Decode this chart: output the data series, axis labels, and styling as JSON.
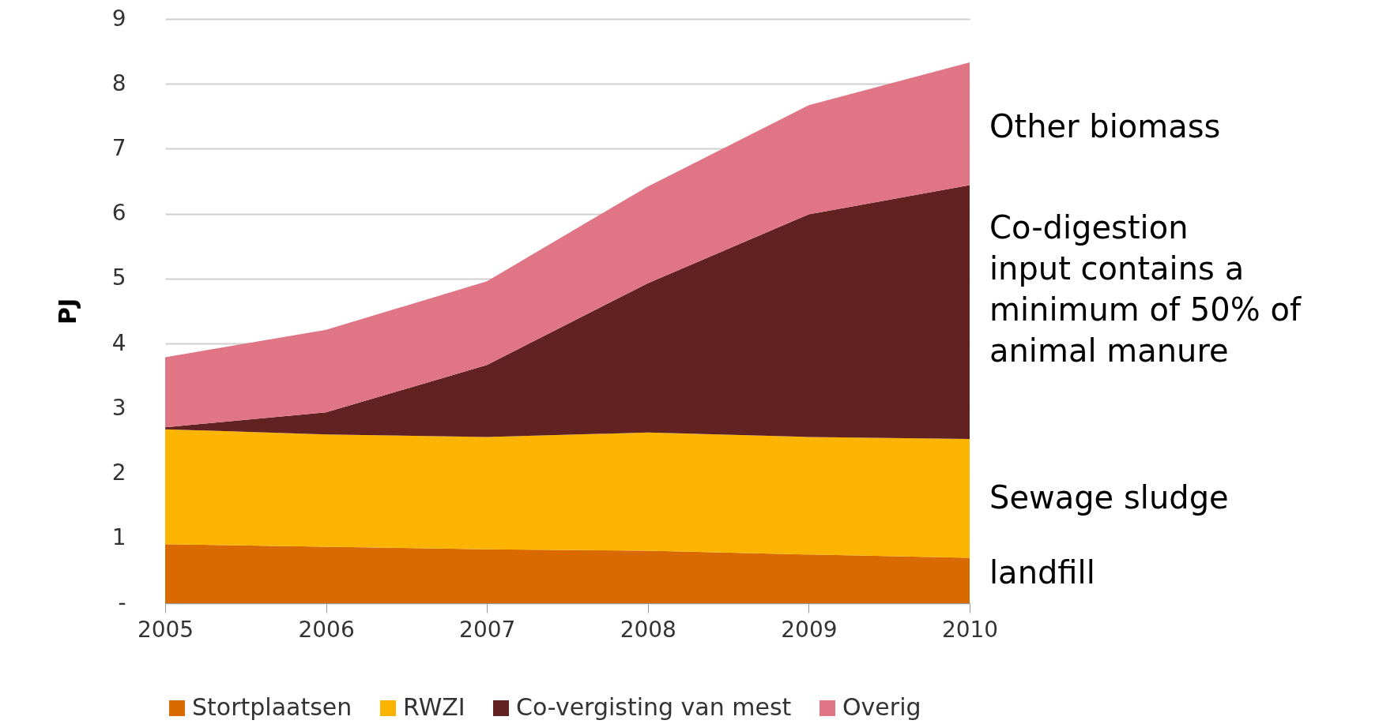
{
  "chart_data": {
    "type": "area",
    "stacked": true,
    "ylabel": "PJ",
    "x": [
      2005,
      2006,
      2007,
      2008,
      2009,
      2010
    ],
    "series": [
      {
        "name": "Stortplaatsen",
        "color": "#d96a00",
        "values": [
          0.91,
          0.87,
          0.83,
          0.81,
          0.75,
          0.7
        ]
      },
      {
        "name": "RWZI",
        "color": "#fbb400",
        "values": [
          1.77,
          1.73,
          1.73,
          1.82,
          1.81,
          1.83
        ]
      },
      {
        "name": "Co-vergisting van mest",
        "color": "#632222",
        "values": [
          0.03,
          0.34,
          1.11,
          2.3,
          3.43,
          3.91
        ]
      },
      {
        "name": "Overig",
        "color": "#e07585",
        "values": [
          1.08,
          1.27,
          1.29,
          1.49,
          1.68,
          1.89
        ]
      }
    ],
    "xlim": [
      2005,
      2010
    ],
    "xticks": [
      2005,
      2006,
      2007,
      2008,
      2009,
      2010
    ],
    "ylim": [
      0,
      9
    ],
    "yticks": [
      {
        "value": 0,
        "label": "-"
      },
      1,
      2,
      3,
      4,
      5,
      6,
      7,
      8,
      9
    ],
    "grid": "y",
    "legend": "bottom",
    "annotations": [
      "Other biomass",
      "Co-digestion\ninput contains a\nminimum of 50% of\nanimal manure",
      "Sewage sludge",
      "landfill"
    ]
  }
}
